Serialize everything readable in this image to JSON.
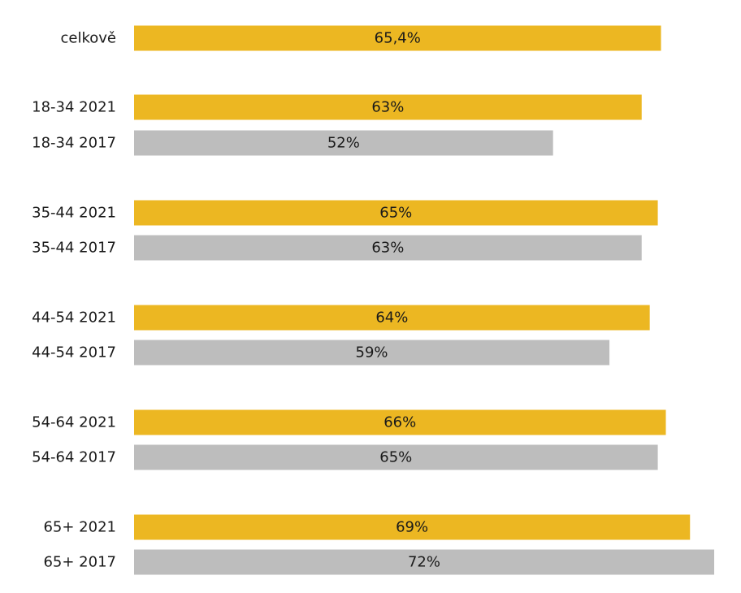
{
  "chart_data": {
    "type": "bar",
    "orientation": "horizontal",
    "categories": [
      "celkově",
      "18-34 2021",
      "18-34 2017",
      "35-44 2021",
      "35-44 2017",
      "44-54 2021",
      "44-54 2017",
      "54-64 2021",
      "54-64 2017",
      "65+ 2021",
      "65+ 2017"
    ],
    "values": [
      65.4,
      63,
      52,
      65,
      63,
      64,
      59,
      66,
      65,
      69,
      72
    ],
    "value_labels": [
      "65,4%",
      "63%",
      "52%",
      "65%",
      "63%",
      "64%",
      "59%",
      "66%",
      "65%",
      "69%",
      "72%"
    ],
    "bar_colors": [
      "#ECB722",
      "#ECB722",
      "#BDBDBD",
      "#ECB722",
      "#BDBDBD",
      "#ECB722",
      "#BDBDBD",
      "#ECB722",
      "#BDBDBD",
      "#ECB722",
      "#BDBDBD"
    ],
    "xlim": [
      0,
      72
    ],
    "title": "",
    "xlabel": "",
    "ylabel": "",
    "grid": false,
    "legend": "none"
  }
}
